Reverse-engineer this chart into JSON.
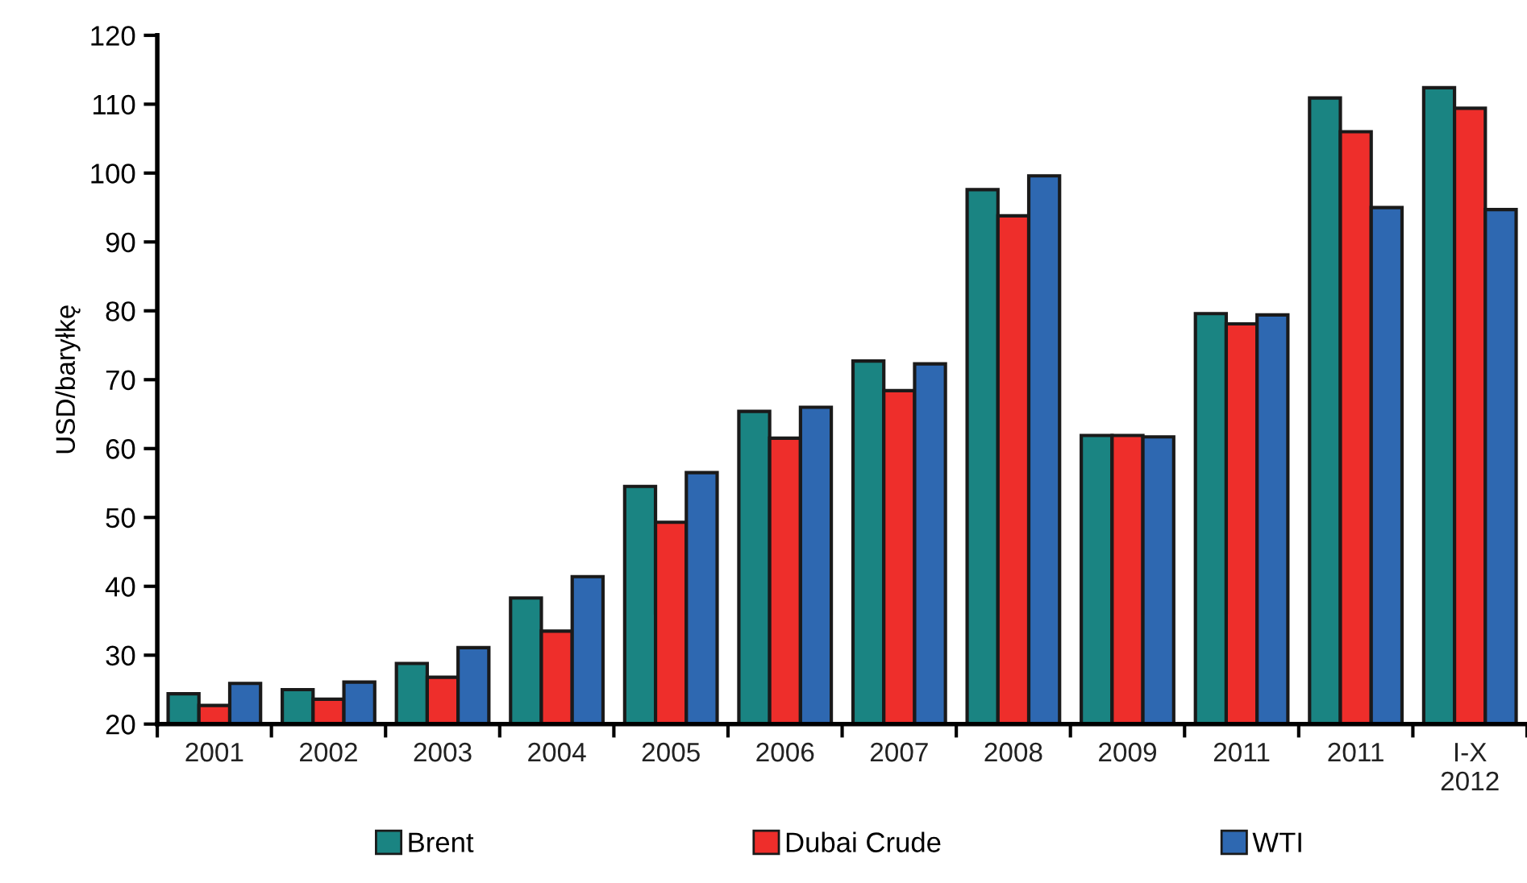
{
  "chart_data": {
    "type": "bar",
    "ylabel": "USD/baryłkę",
    "categories": [
      "2001",
      "2002",
      "2003",
      "2004",
      "2005",
      "2006",
      "2007",
      "2008",
      "2009",
      "2011",
      "2011",
      "I-X\n2012"
    ],
    "series": [
      {
        "name": "Brent",
        "color": "#1a8482",
        "values": [
          24.4,
          25.0,
          28.8,
          38.3,
          54.5,
          65.4,
          72.7,
          97.6,
          61.9,
          79.6,
          110.9,
          112.4
        ]
      },
      {
        "name": "Dubai Crude",
        "color": "#ee2e2b",
        "values": [
          22.7,
          23.6,
          26.8,
          33.5,
          49.3,
          61.5,
          68.4,
          93.8,
          61.9,
          78.1,
          106.0,
          109.4
        ]
      },
      {
        "name": "WTI",
        "color": "#2e68b1",
        "values": [
          25.9,
          26.1,
          31.1,
          41.4,
          56.5,
          66.0,
          72.3,
          99.6,
          61.7,
          79.4,
          95.0,
          94.7
        ]
      }
    ],
    "ylim": [
      20,
      120
    ],
    "yticks": [
      20,
      30,
      40,
      50,
      60,
      70,
      80,
      90,
      100,
      110,
      120
    ],
    "grid": false,
    "legend": "bottom"
  }
}
